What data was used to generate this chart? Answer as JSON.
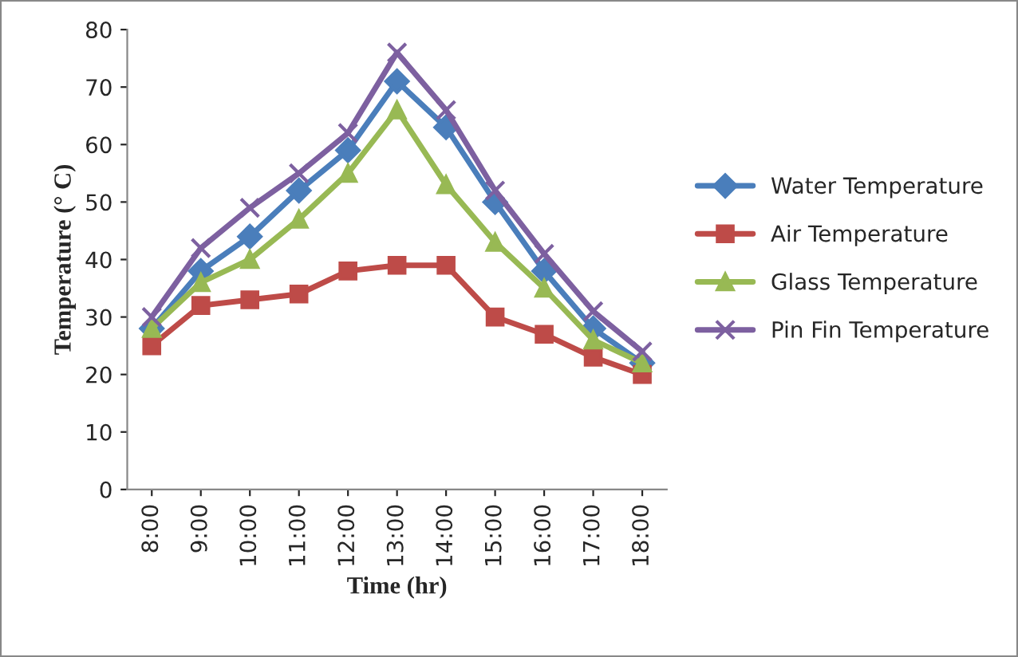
{
  "chart_data": {
    "type": "line",
    "xlabel": "Time (hr)",
    "ylabel": "Temperature (° C)",
    "categories": [
      "8:00",
      "9:00",
      "10:00",
      "11:00",
      "12:00",
      "13:00",
      "14:00",
      "15:00",
      "16:00",
      "17:00",
      "18:00"
    ],
    "series": [
      {
        "name": "Water Temperature",
        "color": "#4a7ebb",
        "marker": "diamond",
        "values": [
          28,
          38,
          44,
          52,
          59,
          71,
          63,
          50,
          38,
          28,
          22
        ]
      },
      {
        "name": "Air Temperature",
        "color": "#be4b48",
        "marker": "square",
        "values": [
          25,
          32,
          33,
          34,
          38,
          39,
          39,
          30,
          27,
          23,
          20
        ]
      },
      {
        "name": "Glass Temperature",
        "color": "#98b954",
        "marker": "triangle",
        "values": [
          28,
          36,
          40,
          47,
          55,
          66,
          53,
          43,
          35,
          26,
          22
        ]
      },
      {
        "name": "Pin Fin Temperature",
        "color": "#7d60a0",
        "marker": "cross",
        "values": [
          30,
          42,
          49,
          55,
          62,
          76,
          66,
          52,
          41,
          31,
          24
        ]
      }
    ],
    "ylim": [
      0,
      80
    ],
    "yticks": [
      0,
      10,
      20,
      30,
      40,
      50,
      60,
      70,
      80
    ],
    "grid": false,
    "legend": "right"
  }
}
